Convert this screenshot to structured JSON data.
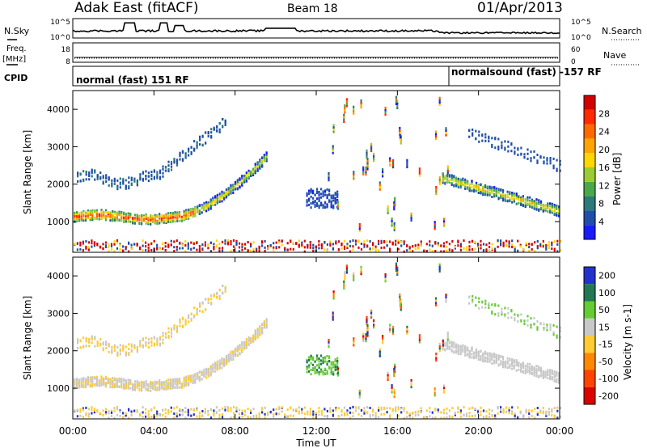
{
  "header": {
    "station": "Adak East (fitACF)",
    "beam": "Beam 18",
    "date": "01/Apr/2013"
  },
  "noise_panel": {
    "left_label": "N.Sky",
    "right_label": "N.Search",
    "left_ticks": [
      "10^5",
      "10^0"
    ],
    "right_ticks": [
      "10^5",
      "10^0"
    ]
  },
  "freq_panel": {
    "left_label_1": "Freq.",
    "left_label_2": "[MHz]",
    "right_label": "Nave",
    "left_ticks": [
      "18",
      "8"
    ],
    "right_ticks": [
      "60",
      "0"
    ]
  },
  "cpid_panel": {
    "label": "CPID",
    "program_1": "normal (fast) 151 RF",
    "program_2": "normalsound (fast) -157 RF"
  },
  "chart_data": [
    {
      "type": "heatmap",
      "title": "",
      "xlabel": "Time UT",
      "ylabel": "Slant Range [km]",
      "xlim": [
        "00:00",
        "24:00"
      ],
      "ylim": [
        180,
        4500
      ],
      "x_ticks": [
        "00:00",
        "04:00",
        "08:00",
        "12:00",
        "16:00",
        "20:00",
        "00:00"
      ],
      "y_ticks": [
        "1000",
        "2000",
        "3000",
        "4000"
      ],
      "colorbar": {
        "label": "Power [dB]",
        "ticks": [
          "4",
          "8",
          "12",
          "16",
          "20",
          "24",
          "28"
        ],
        "colors": [
          "#1a1aff",
          "#1f4fa8",
          "#2d7a7a",
          "#4aa84a",
          "#9acd32",
          "#ffd700",
          "#ffa500",
          "#ff6a00",
          "#ff2a00",
          "#d40000"
        ]
      },
      "features": [
        {
          "name": "E-region band",
          "t_start": 0.0,
          "t_end": 24.0,
          "range_km": 350
        },
        {
          "name": "main echo band A",
          "t_start": 0.0,
          "t_end": 9.5,
          "range_km_start": 1150,
          "range_km_end": 2750
        },
        {
          "name": "upper echo band A",
          "t_start": 0.2,
          "t_end": 7.5,
          "range_km_start": 2100,
          "range_km_end": 3700
        },
        {
          "name": "patch",
          "t_start": 11.5,
          "t_end": 13.0,
          "range_km": 1650
        },
        {
          "name": "main echo band B",
          "t_start": 18.2,
          "t_end": 24.0,
          "range_km_start": 2200,
          "range_km_end": 1300
        },
        {
          "name": "upper echo band B",
          "t_start": 19.5,
          "t_end": 24.0,
          "range_km_start": 3400,
          "range_km_end": 2500
        }
      ]
    },
    {
      "type": "heatmap",
      "title": "",
      "xlabel": "Time UT",
      "ylabel": "Slant Range [km]",
      "xlim": [
        "00:00",
        "24:00"
      ],
      "ylim": [
        180,
        4500
      ],
      "x_ticks": [
        "00:00",
        "04:00",
        "08:00",
        "12:00",
        "16:00",
        "20:00",
        "00:00"
      ],
      "y_ticks": [
        "1000",
        "2000",
        "3000",
        "4000"
      ],
      "colorbar": {
        "label": "Velocity [m s-1]",
        "ticks": [
          "200",
          "100",
          "50",
          "15",
          "-15",
          "-50",
          "-100",
          "-200"
        ],
        "colors": [
          "#2233cc",
          "#227755",
          "#66cc33",
          "#c8c8c8",
          "#ffcc33",
          "#ff8800",
          "#ff4400",
          "#dd0000"
        ]
      }
    }
  ]
}
